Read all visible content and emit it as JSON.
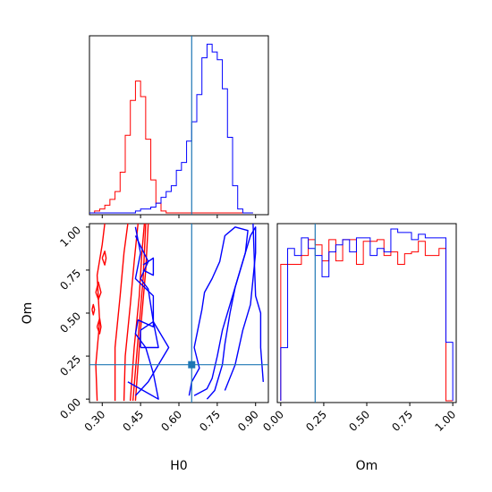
{
  "chart_data": {
    "type": "corner",
    "parameters": [
      "H0",
      "Om"
    ],
    "truth": {
      "H0": 0.65,
      "Om": 0.2
    },
    "colors": {
      "truth": "#1f77b4",
      "red_chain": "#ff0000",
      "blue_chain": "#0000ff"
    },
    "axes": {
      "H0": {
        "label": "H0",
        "range": [
          0.25,
          0.95
        ],
        "ticks": [
          "0.30",
          "0.45",
          "0.60",
          "0.75",
          "0.90"
        ],
        "tick_values": [
          0.3,
          0.45,
          0.6,
          0.75,
          0.9
        ]
      },
      "Om": {
        "label": "Om",
        "range": [
          -0.02,
          1.02
        ],
        "ticks": [
          "0.00",
          "0.25",
          "0.50",
          "0.75",
          "1.00"
        ],
        "tick_values": [
          0.0,
          0.25,
          0.5,
          0.75,
          1.0
        ]
      }
    },
    "hist_H0": {
      "bin_edges": [
        0.25,
        0.27,
        0.29,
        0.31,
        0.33,
        0.35,
        0.37,
        0.39,
        0.41,
        0.43,
        0.45,
        0.47,
        0.49,
        0.51,
        0.53,
        0.55,
        0.57,
        0.59,
        0.61,
        0.63,
        0.65,
        0.67,
        0.69,
        0.71,
        0.73,
        0.75,
        0.77,
        0.79,
        0.81,
        0.83,
        0.85,
        0.87,
        0.89
      ],
      "red": [
        0,
        1,
        2,
        4,
        7,
        11,
        21,
        40,
        58,
        68,
        60,
        38,
        17,
        5,
        1,
        0,
        0,
        0,
        0,
        0,
        0,
        0,
        0,
        0,
        0,
        0,
        0,
        0,
        0,
        0,
        0,
        0
      ],
      "blue": [
        0,
        0,
        0,
        0,
        0,
        0,
        0,
        0,
        0,
        1,
        2,
        2,
        3,
        5,
        8,
        11,
        14,
        22,
        26,
        37,
        47,
        61,
        80,
        87,
        83,
        79,
        64,
        39,
        14,
        2,
        0,
        0
      ]
    },
    "hist_Om": {
      "bin_edges": [
        0.0,
        0.04,
        0.08,
        0.12,
        0.16,
        0.2,
        0.24,
        0.28,
        0.32,
        0.36,
        0.4,
        0.44,
        0.48,
        0.52,
        0.56,
        0.6,
        0.64,
        0.68,
        0.72,
        0.76,
        0.8,
        0.84,
        0.88,
        0.92,
        0.96,
        1.0
      ],
      "red": [
        0.77,
        0.77,
        0.77,
        0.82,
        0.91,
        0.88,
        0.79,
        0.91,
        0.79,
        0.91,
        0.91,
        0.77,
        0.9,
        0.9,
        0.91,
        0.82,
        0.84,
        0.77,
        0.83,
        0.84,
        0.9,
        0.82,
        0.82,
        0.86,
        0.0
      ],
      "blue": [
        0.3,
        0.86,
        0.82,
        0.92,
        0.86,
        0.82,
        0.7,
        0.84,
        0.88,
        0.91,
        0.84,
        0.92,
        0.92,
        0.82,
        0.86,
        0.84,
        0.97,
        0.95,
        0.95,
        0.91,
        0.94,
        0.92,
        0.92,
        0.92,
        0.33
      ]
    },
    "contours_red": [
      [
        [
          0.28,
          -0.01
        ],
        [
          0.275,
          0.2
        ],
        [
          0.29,
          0.45
        ],
        [
          0.28,
          0.72
        ],
        [
          0.3,
          0.9
        ],
        [
          0.31,
          1.02
        ]
      ],
      [
        [
          0.35,
          -0.01
        ],
        [
          0.35,
          0.3
        ],
        [
          0.37,
          0.6
        ],
        [
          0.385,
          0.85
        ],
        [
          0.4,
          1.02
        ]
      ],
      [
        [
          0.385,
          -0.01
        ],
        [
          0.39,
          0.25
        ],
        [
          0.41,
          0.55
        ],
        [
          0.425,
          0.8
        ],
        [
          0.44,
          1.02
        ]
      ],
      [
        [
          0.41,
          -0.01
        ],
        [
          0.425,
          0.3
        ],
        [
          0.445,
          0.6
        ],
        [
          0.455,
          0.85
        ],
        [
          0.465,
          1.02
        ]
      ],
      [
        [
          0.42,
          -0.01
        ],
        [
          0.44,
          0.35
        ],
        [
          0.46,
          0.7
        ],
        [
          0.47,
          1.02
        ]
      ],
      [
        [
          0.43,
          -0.01
        ],
        [
          0.45,
          0.4
        ],
        [
          0.47,
          0.75
        ],
        [
          0.48,
          1.02
        ]
      ],
      [
        [
          0.26,
          0.52
        ],
        [
          0.265,
          0.55
        ],
        [
          0.27,
          0.52
        ],
        [
          0.265,
          0.49
        ],
        [
          0.26,
          0.52
        ]
      ],
      [
        [
          0.275,
          0.62
        ],
        [
          0.285,
          0.68
        ],
        [
          0.295,
          0.62
        ],
        [
          0.285,
          0.58
        ],
        [
          0.275,
          0.62
        ]
      ],
      [
        [
          0.28,
          0.42
        ],
        [
          0.29,
          0.47
        ],
        [
          0.295,
          0.42
        ],
        [
          0.29,
          0.38
        ],
        [
          0.28,
          0.42
        ]
      ],
      [
        [
          0.3,
          0.82
        ],
        [
          0.31,
          0.86
        ],
        [
          0.315,
          0.82
        ],
        [
          0.31,
          0.78
        ],
        [
          0.3,
          0.82
        ]
      ]
    ],
    "contours_blue": [
      [
        [
          0.4,
          0.1
        ],
        [
          0.46,
          0.05
        ],
        [
          0.52,
          0.0
        ],
        [
          0.5,
          0.15
        ],
        [
          0.47,
          0.3
        ],
        [
          0.43,
          0.38
        ],
        [
          0.44,
          0.46
        ],
        [
          0.5,
          0.42
        ],
        [
          0.5,
          0.6
        ],
        [
          0.43,
          0.7
        ],
        [
          0.45,
          0.85
        ],
        [
          0.43,
          1.0
        ]
      ],
      [
        [
          0.45,
          0.3
        ],
        [
          0.52,
          0.3
        ],
        [
          0.5,
          0.45
        ],
        [
          0.45,
          0.4
        ],
        [
          0.45,
          0.3
        ]
      ],
      [
        [
          0.43,
          0.02
        ],
        [
          0.48,
          0.1
        ],
        [
          0.56,
          0.3
        ],
        [
          0.5,
          0.45
        ],
        [
          0.48,
          0.64
        ],
        [
          0.45,
          0.7
        ],
        [
          0.48,
          0.8
        ],
        [
          0.43,
          0.95
        ]
      ],
      [
        [
          0.46,
          0.75
        ],
        [
          0.5,
          0.72
        ],
        [
          0.5,
          0.82
        ],
        [
          0.46,
          0.78
        ]
      ],
      [
        [
          0.64,
          0.02
        ],
        [
          0.65,
          0.1
        ],
        [
          0.68,
          0.18
        ],
        [
          0.66,
          0.3
        ],
        [
          0.69,
          0.52
        ],
        [
          0.7,
          0.62
        ],
        [
          0.73,
          0.7
        ],
        [
          0.76,
          0.8
        ],
        [
          0.78,
          0.95
        ],
        [
          0.82,
          1.0
        ],
        [
          0.87,
          0.98
        ],
        [
          0.86,
          0.85
        ],
        [
          0.83,
          0.7
        ],
        [
          0.8,
          0.55
        ],
        [
          0.77,
          0.4
        ],
        [
          0.75,
          0.25
        ],
        [
          0.73,
          0.12
        ],
        [
          0.71,
          0.06
        ],
        [
          0.66,
          0.02
        ]
      ],
      [
        [
          0.71,
          0.0
        ],
        [
          0.74,
          0.05
        ],
        [
          0.77,
          0.2
        ],
        [
          0.78,
          0.32
        ],
        [
          0.8,
          0.5
        ],
        [
          0.82,
          0.65
        ],
        [
          0.85,
          0.8
        ],
        [
          0.88,
          0.95
        ],
        [
          0.9,
          1.0
        ],
        [
          0.9,
          0.85
        ],
        [
          0.89,
          0.7
        ],
        [
          0.88,
          0.55
        ],
        [
          0.85,
          0.4
        ],
        [
          0.82,
          0.2
        ],
        [
          0.78,
          0.05
        ]
      ],
      [
        [
          0.89,
          1.02
        ],
        [
          0.9,
          0.6
        ],
        [
          0.92,
          0.5
        ],
        [
          0.92,
          0.3
        ],
        [
          0.93,
          0.1
        ]
      ]
    ]
  }
}
